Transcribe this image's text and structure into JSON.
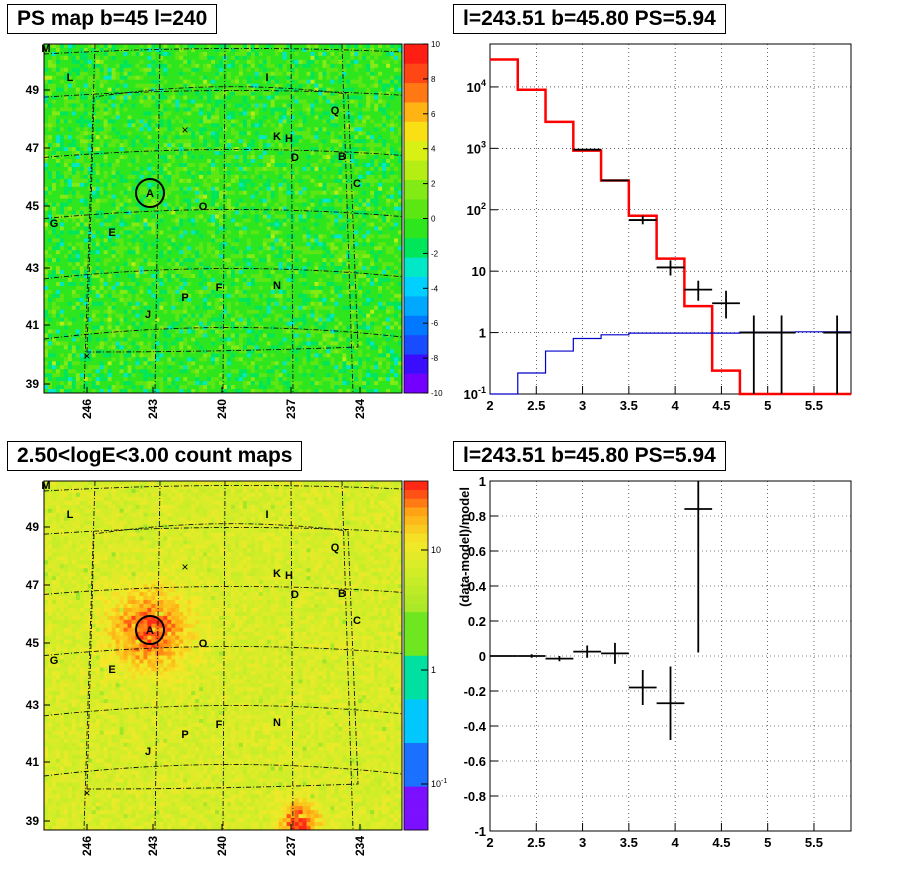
{
  "chart_data": [
    {
      "type": "heatmap",
      "title": "PS map b=45 l=240",
      "xticks": [
        "246",
        "243",
        "240",
        "237",
        "234"
      ],
      "yticks": [
        "49",
        "47",
        "45",
        "43",
        "41",
        "39"
      ],
      "colorbar": {
        "min": -10,
        "max": 10,
        "ticks": [
          "10",
          "8",
          "6",
          "4",
          "2",
          "0",
          "-2",
          "-4",
          "-6",
          "-8",
          "-10"
        ]
      },
      "markers": [
        "M",
        "L",
        "I",
        "Q",
        "K",
        "H",
        "D",
        "B",
        "C",
        "A",
        "O",
        "G",
        "E",
        "N",
        "F",
        "P",
        "J"
      ],
      "highlight": "A"
    },
    {
      "type": "line",
      "title": "l=243.51 b=45.80 PS=5.94",
      "log_y": true,
      "xlim": [
        2,
        5.9
      ],
      "ylim": [
        0.1,
        50000
      ],
      "xticks": [
        "2",
        "2.5",
        "3",
        "3.5",
        "4",
        "4.5",
        "5",
        "5.5"
      ],
      "yticks": [
        "10^4",
        "10^3",
        "10^2",
        "10",
        "1",
        "10^-1"
      ],
      "series": [
        {
          "color": "#ff0000",
          "edges": [
            2.0,
            2.3,
            2.6,
            2.9,
            3.2,
            3.5,
            3.8,
            4.1,
            4.4,
            4.7,
            5.9
          ],
          "values": [
            28000,
            9000,
            2700,
            920,
            300,
            80,
            16,
            2.7,
            0.24,
            0.1
          ]
        },
        {
          "color": "#0000cc",
          "edges": [
            2.0,
            2.3,
            2.6,
            2.9,
            3.2,
            3.5,
            4.7,
            5.3,
            5.9
          ],
          "values": [
            0.1,
            0.22,
            0.5,
            0.8,
            0.92,
            0.98,
            1.02,
            1.03
          ]
        },
        {
          "color": "#000000",
          "points": [
            {
              "x": 3.05,
              "y": 950,
              "xe": 0.15
            },
            {
              "x": 3.35,
              "y": 300,
              "xe": 0.15
            },
            {
              "x": 3.65,
              "y": 68,
              "xe": 0.15,
              "lo": 58,
              "hi": 80
            },
            {
              "x": 3.95,
              "y": 11.5,
              "xe": 0.15,
              "lo": 8.5,
              "hi": 15
            },
            {
              "x": 4.25,
              "y": 5.0,
              "xe": 0.15,
              "lo": 3.3,
              "hi": 7.0
            },
            {
              "x": 4.55,
              "y": 3.0,
              "xe": 0.15,
              "lo": 1.7,
              "hi": 4.8
            },
            {
              "x": 4.85,
              "y": 1.0,
              "xe": 0.15,
              "lo": 0.1,
              "hi": 1.9
            },
            {
              "x": 5.15,
              "y": 1.0,
              "xe": 0.15,
              "lo": 0.1,
              "hi": 1.9
            },
            {
              "x": 5.75,
              "y": 1.0,
              "xe": 0.15,
              "lo": 0.1,
              "hi": 1.9
            }
          ]
        }
      ]
    },
    {
      "type": "heatmap",
      "title": "2.50<logE<3.00 count maps",
      "xticks": [
        "246",
        "243",
        "240",
        "237",
        "234"
      ],
      "yticks": [
        "49",
        "47",
        "45",
        "43",
        "41",
        "39"
      ],
      "colorbar": {
        "log": true,
        "ticks": [
          "10",
          "1",
          "10^-1"
        ]
      },
      "markers": [
        "M",
        "L",
        "I",
        "Q",
        "K",
        "H",
        "D",
        "B",
        "C",
        "A",
        "O",
        "G",
        "E",
        "N",
        "F",
        "P",
        "J"
      ],
      "highlight": "A"
    },
    {
      "type": "scatter",
      "title": "l=243.51 b=45.80 PS=5.94",
      "ylabel": "(data-model)/model",
      "xlim": [
        2,
        5.9
      ],
      "ylim": [
        -1,
        1
      ],
      "xticks": [
        "2",
        "2.5",
        "3",
        "3.5",
        "4",
        "4.5",
        "5",
        "5.5"
      ],
      "yticks": [
        "1",
        "0.8",
        "0.6",
        "0.4",
        "0.2",
        "0",
        "-0.2",
        "-0.4",
        "-0.6",
        "-0.8",
        "-1"
      ],
      "points": [
        {
          "x": 2.15,
          "y": 0.0,
          "xe": 0.15,
          "ye": 0.0
        },
        {
          "x": 2.45,
          "y": 0.0,
          "xe": 0.15,
          "ye": 0.01
        },
        {
          "x": 2.75,
          "y": -0.015,
          "xe": 0.15,
          "ye": 0.015
        },
        {
          "x": 3.05,
          "y": 0.025,
          "xe": 0.15,
          "ye": 0.035
        },
        {
          "x": 3.35,
          "y": 0.015,
          "xe": 0.15,
          "ye": 0.06
        },
        {
          "x": 3.65,
          "y": -0.18,
          "xe": 0.15,
          "ye": 0.1
        },
        {
          "x": 3.95,
          "y": -0.27,
          "xe": 0.15,
          "ye": 0.21
        },
        {
          "x": 4.25,
          "y": 0.84,
          "xe": 0.15,
          "ye": 0.82
        }
      ]
    }
  ]
}
